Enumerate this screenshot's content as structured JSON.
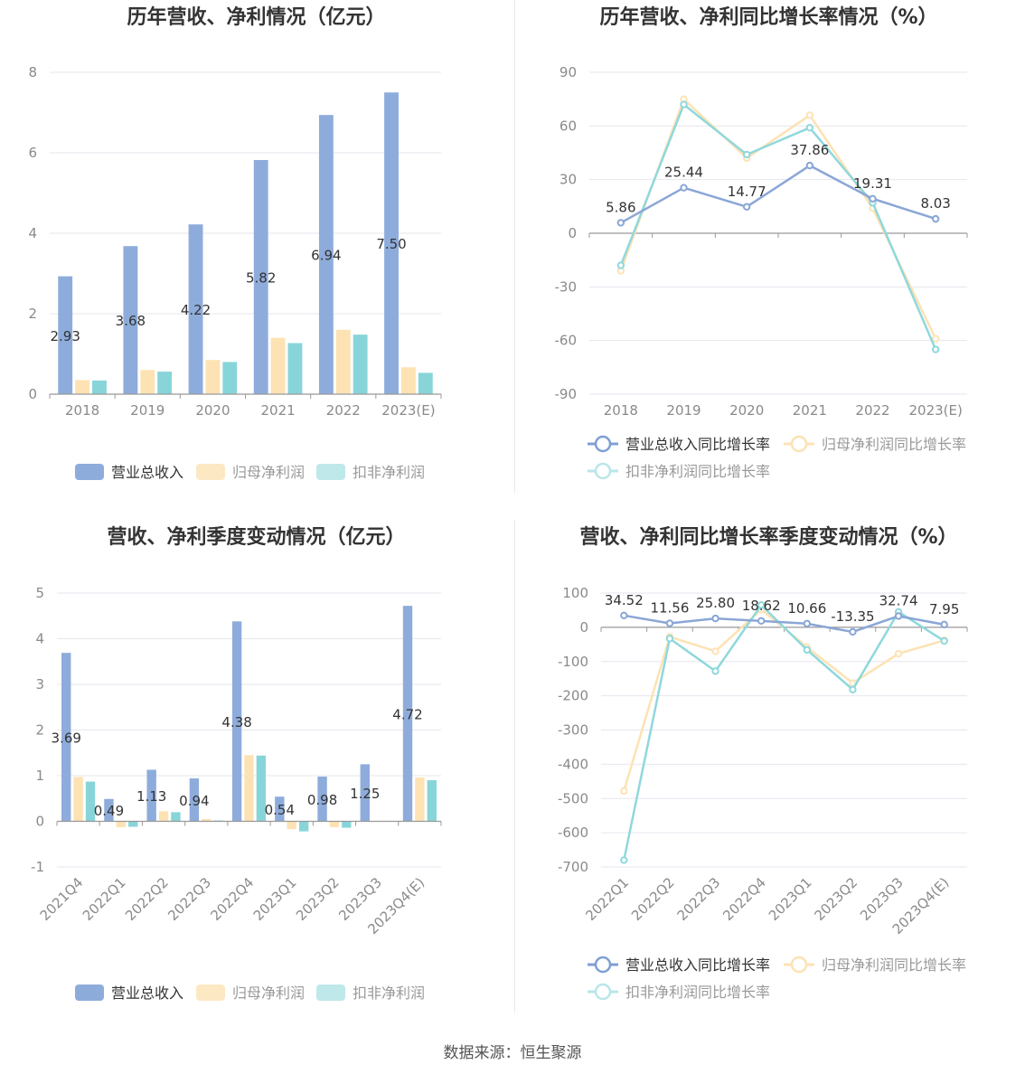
{
  "source_text": "数据来源：恒生聚源",
  "colors": {
    "revenue": "#8eacdb",
    "net_profit": "#fde2b4",
    "deducted_profit": "#87d5d9",
    "grid": "#e6e6ef",
    "axis": "#999999",
    "text": "#333333"
  },
  "chart_data": [
    {
      "type": "bar",
      "title": "历年营收、净利情况（亿元）",
      "categories": [
        "2018",
        "2019",
        "2020",
        "2021",
        "2022",
        "2023(E)"
      ],
      "ylim": [
        0,
        8
      ],
      "yticks": [
        0,
        2,
        4,
        6,
        8
      ],
      "series": [
        {
          "name": "营业总收入",
          "values": [
            2.93,
            3.68,
            4.22,
            5.82,
            6.94,
            7.5
          ]
        },
        {
          "name": "归母净利润",
          "values": [
            0.35,
            0.6,
            0.85,
            1.4,
            1.6,
            0.67
          ]
        },
        {
          "name": "扣非净利润",
          "values": [
            0.34,
            0.56,
            0.8,
            1.27,
            1.48,
            0.53
          ]
        }
      ],
      "data_labels": [
        "2.93",
        "3.68",
        "4.22",
        "5.82",
        "6.94",
        "7.50"
      ],
      "legend": "bottom"
    },
    {
      "type": "line",
      "title": "历年营收、净利同比增长率情况（%）",
      "categories": [
        "2018",
        "2019",
        "2020",
        "2021",
        "2022",
        "2023(E)"
      ],
      "ylim": [
        -90,
        90
      ],
      "yticks": [
        -90,
        -60,
        -30,
        0,
        30,
        60,
        90
      ],
      "series": [
        {
          "name": "营业总收入同比增长率",
          "values": [
            5.86,
            25.44,
            14.77,
            37.86,
            19.31,
            8.03
          ]
        },
        {
          "name": "归母净利润同比增长率",
          "values": [
            -21,
            75,
            42,
            66,
            14,
            -59
          ]
        },
        {
          "name": "扣非净利润同比增长率",
          "values": [
            -18,
            72,
            44,
            59,
            17,
            -65
          ]
        }
      ],
      "data_labels": [
        "5.86",
        "25.44",
        "14.77",
        "37.86",
        "19.31",
        "8.03"
      ],
      "legend": "bottom"
    },
    {
      "type": "bar",
      "title": "营收、净利季度变动情况（亿元）",
      "categories": [
        "2021Q4",
        "2022Q1",
        "2022Q2",
        "2022Q3",
        "2022Q4",
        "2023Q1",
        "2023Q2",
        "2023Q3",
        "2023Q4(E)"
      ],
      "ylim": [
        -1,
        5
      ],
      "yticks": [
        -1,
        0,
        1,
        2,
        3,
        4,
        5
      ],
      "series": [
        {
          "name": "营业总收入",
          "values": [
            3.69,
            0.49,
            1.13,
            0.94,
            4.38,
            0.54,
            0.98,
            1.25,
            4.72
          ]
        },
        {
          "name": "归母净利润",
          "values": [
            0.97,
            -0.13,
            0.22,
            0.05,
            1.45,
            -0.17,
            -0.13,
            0.01,
            0.96
          ]
        },
        {
          "name": "扣非净利润",
          "values": [
            0.87,
            -0.12,
            0.2,
            0.02,
            1.44,
            -0.22,
            -0.14,
            0.0,
            0.9
          ]
        }
      ],
      "data_labels": [
        "3.69",
        "0.49",
        "1.13",
        "0.94",
        "4.38",
        "0.54",
        "0.98",
        "1.25",
        "4.72"
      ],
      "legend": "bottom"
    },
    {
      "type": "line",
      "title": "营收、净利同比增长率季度变动情况（%）",
      "categories": [
        "2022Q1",
        "2022Q2",
        "2022Q3",
        "2022Q4",
        "2023Q1",
        "2023Q2",
        "2023Q3",
        "2023Q4(E)"
      ],
      "ylim": [
        -700,
        100
      ],
      "yticks": [
        -700,
        -600,
        -500,
        -400,
        -300,
        -200,
        -100,
        0,
        100
      ],
      "series": [
        {
          "name": "营业总收入同比增长率",
          "values": [
            34.52,
            11.56,
            25.8,
            18.62,
            10.66,
            -13.35,
            32.74,
            7.95
          ]
        },
        {
          "name": "归母净利润同比增长率",
          "values": [
            -478,
            -28,
            -70,
            52,
            -58,
            -163,
            -77,
            -38
          ]
        },
        {
          "name": "扣非净利润同比增长率",
          "values": [
            -680,
            -33,
            -128,
            65,
            -66,
            -182,
            45,
            -40
          ]
        }
      ],
      "data_labels": [
        "34.52",
        "11.56",
        "25.80",
        "18.62",
        "10.66",
        "-13.35",
        "32.74",
        "7.95"
      ],
      "legend": "bottom"
    }
  ]
}
